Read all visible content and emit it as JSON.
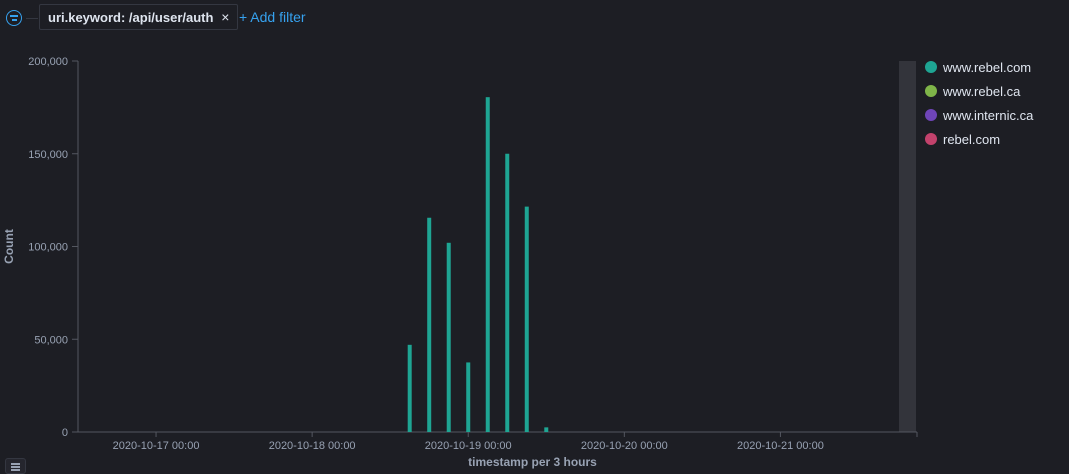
{
  "filter_bar": {
    "filter_pill_label": "uri.keyword: /api/user/auth",
    "close_glyph": "×",
    "add_filter_label": "+ Add filter",
    "filter_icon": "filter-icon"
  },
  "legend": [
    {
      "label": "www.rebel.com",
      "color": "#1ea593"
    },
    {
      "label": "www.rebel.ca",
      "color": "#7fb549"
    },
    {
      "label": "www.internic.ca",
      "color": "#6f45b8"
    },
    {
      "label": "rebel.com",
      "color": "#c3426c"
    }
  ],
  "chart_data": {
    "type": "bar",
    "xlabel": "timestamp per 3 hours",
    "ylabel": "Count",
    "x_ticks": [
      "2020-10-17 00:00",
      "2020-10-18 00:00",
      "2020-10-19 00:00",
      "2020-10-20 00:00",
      "2020-10-21 00:00"
    ],
    "y_ticks": [
      "0",
      "50,000",
      "100,000",
      "150,000",
      "200,000"
    ],
    "ylim": [
      0,
      200000
    ],
    "x_range": [
      "2020-10-16 12:00",
      "2020-10-21 21:00"
    ],
    "grid": false,
    "legend_position": "right",
    "series": [
      {
        "name": "www.rebel.com",
        "color": "#1ea593",
        "points": [
          {
            "x": "2020-10-18 15:00",
            "y": 47000
          },
          {
            "x": "2020-10-18 18:00",
            "y": 115500
          },
          {
            "x": "2020-10-18 21:00",
            "y": 102000
          },
          {
            "x": "2020-10-19 00:00",
            "y": 37500
          },
          {
            "x": "2020-10-19 03:00",
            "y": 180500
          },
          {
            "x": "2020-10-19 06:00",
            "y": 150000
          },
          {
            "x": "2020-10-19 09:00",
            "y": 121500
          },
          {
            "x": "2020-10-19 12:00",
            "y": 2500
          }
        ]
      }
    ]
  }
}
